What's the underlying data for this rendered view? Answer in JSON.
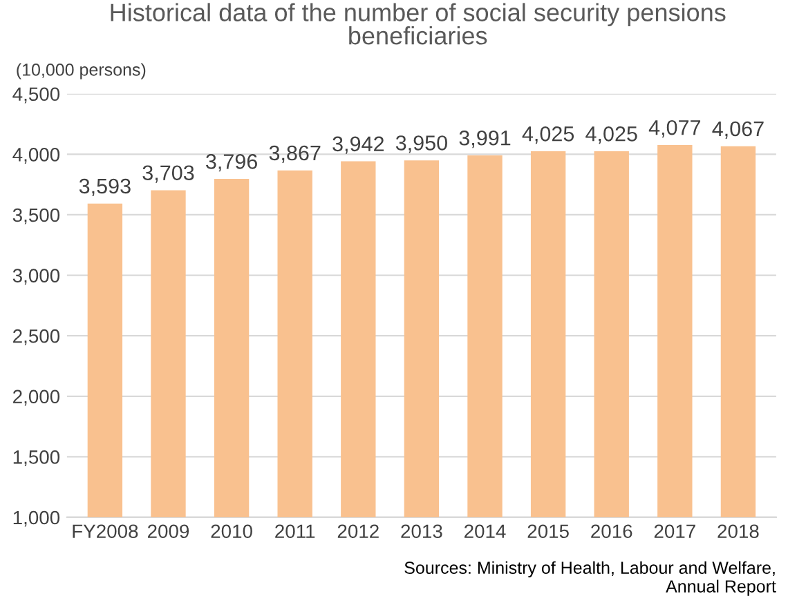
{
  "chart_data": {
    "type": "bar",
    "title": "Historical data of the number of social security pensions\nbeneficiaries",
    "ylabel": "(10,000 persons)",
    "categories": [
      "FY2008",
      "2009",
      "2010",
      "2011",
      "2012",
      "2013",
      "2014",
      "2015",
      "2016",
      "2017",
      "2018"
    ],
    "values": [
      3593,
      3703,
      3796,
      3867,
      3942,
      3950,
      3991,
      4025,
      4025,
      4077,
      4067
    ],
    "color": "#f9c18f",
    "ylim": [
      1000,
      4500
    ],
    "yticks": [
      {
        "value": 1000,
        "label": "1,000"
      },
      {
        "value": 1500,
        "label": "1,500"
      },
      {
        "value": 2000,
        "label": "2,000"
      },
      {
        "value": 2500,
        "label": "2,500"
      },
      {
        "value": 3000,
        "label": "3,000"
      },
      {
        "value": 3500,
        "label": "3,500"
      },
      {
        "value": 4000,
        "label": "4,000"
      },
      {
        "value": 4500,
        "label": "4,500"
      }
    ],
    "value_labels": [
      "3,593",
      "3,703",
      "3,796",
      "3,867",
      "3,942",
      "3,950",
      "3,991",
      "4,025",
      "4,025",
      "4,077",
      "4,067"
    ],
    "grid": "y",
    "annotations": [
      "Sources: Ministry of Health, Labour and Welfare,\nAnnual Report"
    ]
  }
}
